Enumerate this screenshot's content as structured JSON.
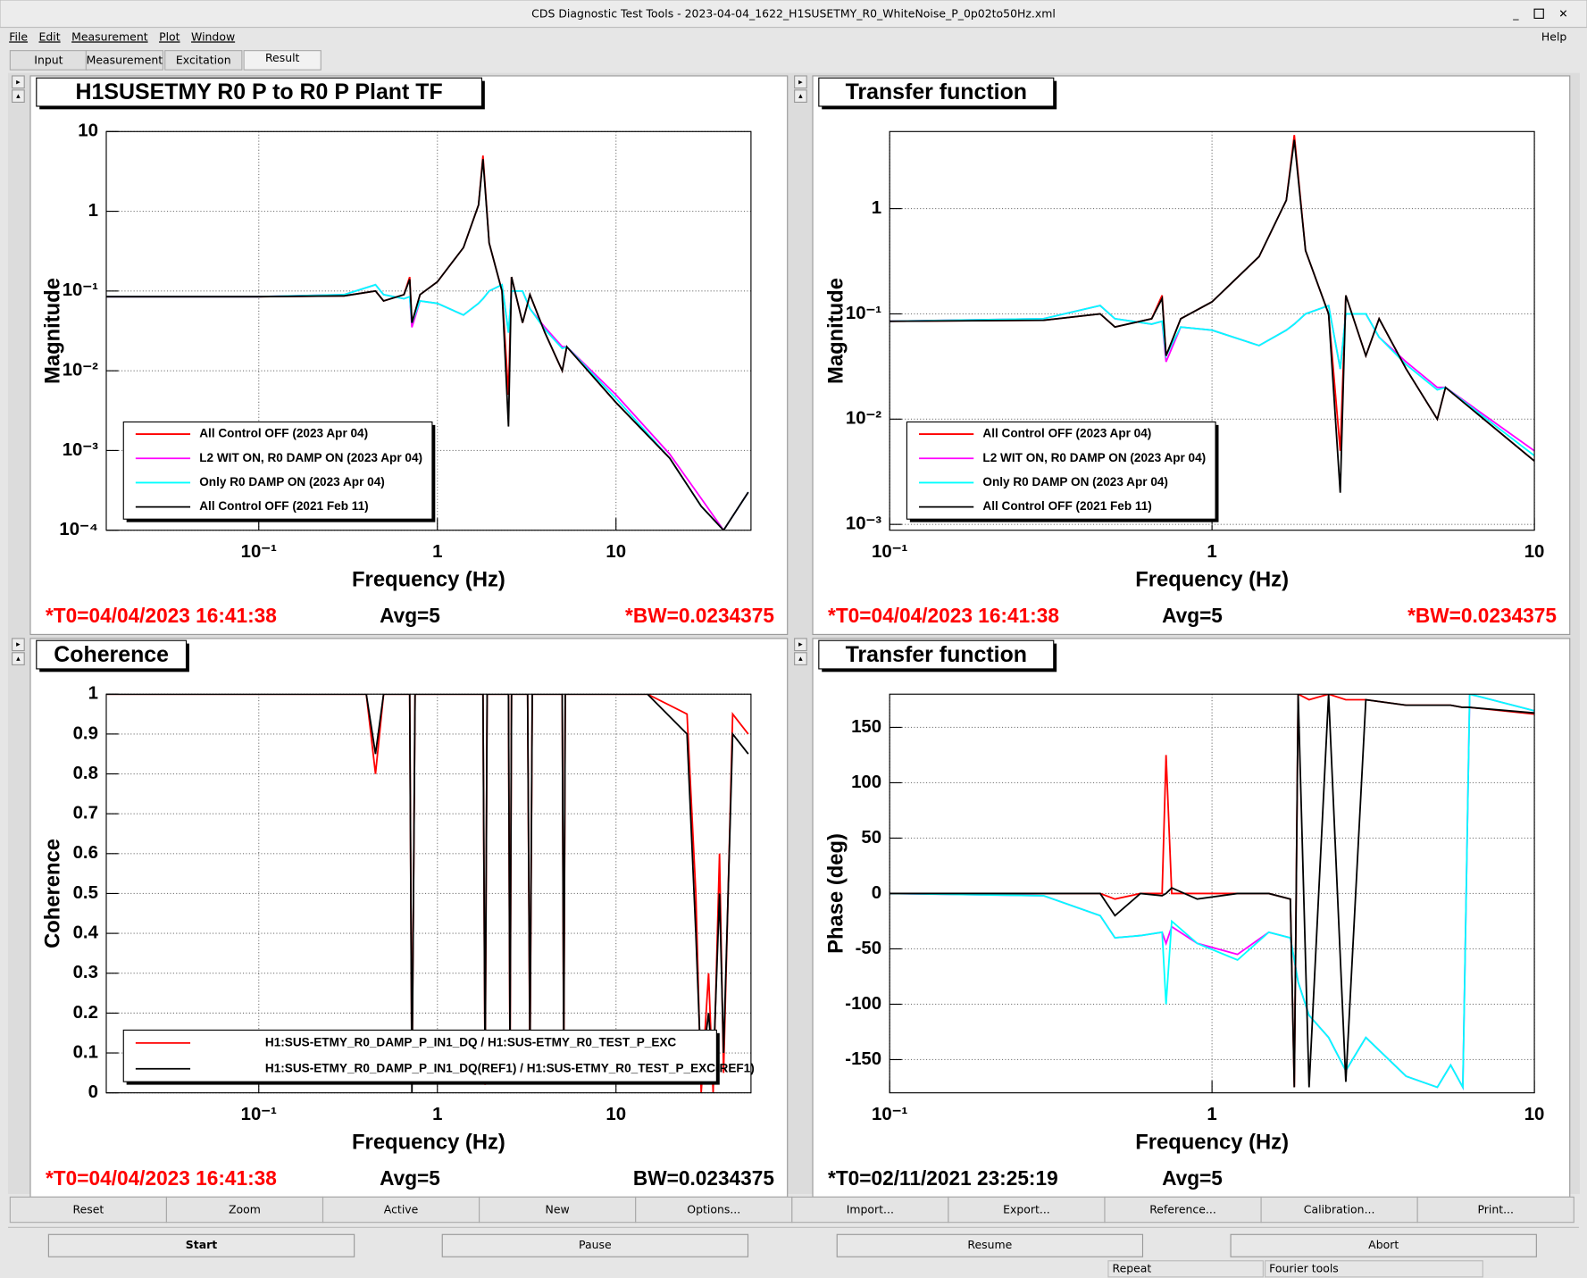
{
  "window": {
    "title": "CDS Diagnostic Test Tools - 2023-04-04_1622_H1SUSETMY_R0_WhiteNoise_P_0p02to50Hz.xml",
    "menus": [
      "File",
      "Edit",
      "Measurement",
      "Plot",
      "Window"
    ],
    "help": "Help"
  },
  "tabs": [
    "Input",
    "Measurement",
    "Excitation",
    "Result"
  ],
  "chart_data": [
    {
      "type": "line",
      "title": "H1SUSETMY R0 P to R0 P Plant TF",
      "xlabel": "Frequency (Hz)",
      "ylabel": "Magnitude",
      "xlog": true,
      "ylog": true,
      "grid": true,
      "xlim": [
        0.014,
        57
      ],
      "ylim": [
        0.0001,
        10
      ],
      "xticks": [
        {
          "value": 0.1,
          "label": "10⁻¹"
        },
        1,
        10
      ],
      "yticks": [
        10,
        1,
        {
          "value": 0.1,
          "label": "10⁻¹"
        },
        {
          "value": 0.01,
          "label": "10⁻²"
        },
        {
          "value": 0.001,
          "label": "10⁻³"
        },
        {
          "value": 0.0001,
          "label": "10⁻⁴"
        }
      ],
      "x": [
        0.014,
        0.1,
        0.3,
        0.45,
        0.5,
        0.65,
        0.7,
        0.72,
        0.8,
        1.0,
        1.4,
        1.7,
        1.8,
        1.95,
        2.3,
        2.5,
        2.6,
        3.0,
        3.3,
        4.0,
        5.0,
        5.3,
        10,
        20,
        30,
        40,
        55
      ],
      "series": [
        {
          "name": "All Control OFF (2023 Apr 04)",
          "color": "#ff0000",
          "values": [
            0.085,
            0.085,
            0.087,
            0.1,
            0.075,
            0.09,
            0.15,
            0.04,
            0.09,
            0.13,
            0.35,
            1.2,
            5,
            0.4,
            0.1,
            0.005,
            0.15,
            0.04,
            0.09,
            0.03,
            0.01,
            0.02,
            0.004,
            0.0008,
            0.0002,
            0.0001,
            0.0003
          ]
        },
        {
          "name": "L2 WIT ON, R0 DAMP ON (2023 Apr 04)",
          "color": "#ff00ff",
          "values": [
            0.085,
            0.085,
            0.09,
            0.12,
            0.09,
            0.08,
            0.085,
            0.035,
            0.075,
            0.07,
            0.05,
            0.07,
            0.08,
            0.1,
            0.12,
            0.03,
            0.1,
            0.1,
            0.06,
            0.035,
            0.02,
            0.02,
            0.005,
            0.0009,
            0.00025,
            0.0001,
            0.0003
          ]
        },
        {
          "name": "Only R0 DAMP ON (2023 Apr 04)",
          "color": "#00ffff",
          "values": [
            0.085,
            0.085,
            0.09,
            0.12,
            0.09,
            0.08,
            0.085,
            0.04,
            0.075,
            0.07,
            0.05,
            0.07,
            0.08,
            0.1,
            0.12,
            0.03,
            0.1,
            0.1,
            0.06,
            0.033,
            0.019,
            0.02,
            0.0045,
            0.0008,
            0.0002,
            0.0001,
            0.0003
          ]
        },
        {
          "name": "All Control OFF (2021 Feb 11)",
          "color": "#000000",
          "values": [
            0.085,
            0.085,
            0.087,
            0.1,
            0.075,
            0.09,
            0.14,
            0.04,
            0.09,
            0.13,
            0.35,
            1.2,
            4.5,
            0.4,
            0.1,
            0.002,
            0.15,
            0.04,
            0.09,
            0.03,
            0.01,
            0.02,
            0.004,
            0.0008,
            0.0002,
            0.0001,
            0.0003
          ]
        }
      ],
      "footer": [
        {
          "text": "*T0=04/04/2023 16:41:38",
          "color": "#ff0000"
        },
        {
          "text": "Avg=5",
          "color": "#000000"
        },
        {
          "text": "*BW=0.0234375",
          "color": "#ff0000"
        }
      ]
    },
    {
      "type": "line",
      "title": "Transfer function",
      "xlabel": "Frequency (Hz)",
      "ylabel": "Magnitude",
      "xlog": true,
      "ylog": true,
      "grid": true,
      "xlim": [
        0.1,
        10
      ],
      "ylim": [
        0.00088,
        5.4
      ],
      "xticks": [
        {
          "value": 0.1,
          "label": "10⁻¹"
        },
        1,
        10
      ],
      "yticks": [
        1,
        {
          "value": 0.1,
          "label": "10⁻¹"
        },
        {
          "value": 0.01,
          "label": "10⁻²"
        },
        {
          "value": 0.001,
          "label": "10⁻³"
        }
      ],
      "x": [
        0.1,
        0.3,
        0.45,
        0.5,
        0.65,
        0.7,
        0.72,
        0.8,
        1.0,
        1.4,
        1.7,
        1.8,
        1.95,
        2.3,
        2.5,
        2.6,
        3.0,
        3.3,
        4.0,
        5.0,
        5.3,
        10
      ],
      "series": [
        {
          "name": "All Control OFF (2023 Apr 04)",
          "color": "#ff0000",
          "values": [
            0.085,
            0.087,
            0.1,
            0.075,
            0.09,
            0.15,
            0.04,
            0.09,
            0.13,
            0.35,
            1.2,
            5,
            0.4,
            0.1,
            0.005,
            0.15,
            0.04,
            0.09,
            0.03,
            0.01,
            0.02,
            0.004
          ]
        },
        {
          "name": "L2 WIT ON, R0 DAMP ON (2023 Apr 04)",
          "color": "#ff00ff",
          "values": [
            0.085,
            0.09,
            0.12,
            0.09,
            0.08,
            0.085,
            0.035,
            0.075,
            0.07,
            0.05,
            0.07,
            0.08,
            0.1,
            0.12,
            0.03,
            0.1,
            0.1,
            0.06,
            0.035,
            0.02,
            0.02,
            0.005
          ]
        },
        {
          "name": "Only R0 DAMP ON (2023 Apr 04)",
          "color": "#00ffff",
          "values": [
            0.085,
            0.09,
            0.12,
            0.09,
            0.08,
            0.085,
            0.04,
            0.075,
            0.07,
            0.05,
            0.07,
            0.08,
            0.1,
            0.12,
            0.03,
            0.1,
            0.1,
            0.06,
            0.033,
            0.019,
            0.02,
            0.0045
          ]
        },
        {
          "name": "All Control OFF (2021 Feb 11)",
          "color": "#000000",
          "values": [
            0.085,
            0.087,
            0.1,
            0.075,
            0.09,
            0.14,
            0.04,
            0.09,
            0.13,
            0.35,
            1.2,
            4.5,
            0.4,
            0.1,
            0.002,
            0.15,
            0.04,
            0.09,
            0.03,
            0.01,
            0.02,
            0.004
          ]
        }
      ],
      "footer": [
        {
          "text": "*T0=04/04/2023 16:41:38",
          "color": "#ff0000"
        },
        {
          "text": "Avg=5",
          "color": "#000000"
        },
        {
          "text": "*BW=0.0234375",
          "color": "#ff0000"
        }
      ]
    },
    {
      "type": "line",
      "title": "Coherence",
      "xlabel": "Frequency (Hz)",
      "ylabel": "Coherence",
      "xlog": true,
      "ylog": false,
      "grid": true,
      "xlim": [
        0.014,
        57
      ],
      "ylim": [
        0,
        1
      ],
      "xticks": [
        {
          "value": 0.1,
          "label": "10⁻¹"
        },
        1,
        10
      ],
      "yticks": [
        0,
        0.1,
        0.2,
        0.3,
        0.4,
        0.5,
        0.6,
        0.7,
        0.8,
        0.9,
        1
      ],
      "x": [
        0.014,
        0.4,
        0.45,
        0.5,
        0.7,
        0.72,
        0.75,
        1.8,
        1.85,
        1.9,
        2.5,
        2.55,
        2.6,
        3.2,
        3.3,
        3.4,
        5.0,
        5.1,
        5.2,
        15,
        25,
        28,
        30,
        33,
        35,
        38,
        40,
        45,
        55
      ],
      "series": [
        {
          "name": "H1:SUS-ETMY_R0_DAMP_P_IN1_DQ / H1:SUS-ETMY_R0_TEST_P_EXC",
          "color": "#ff0000",
          "values": [
            1,
            1,
            0.8,
            1,
            1,
            0.02,
            1,
            1,
            0.02,
            1,
            1,
            0.05,
            1,
            1,
            0.05,
            1,
            1,
            0.05,
            1,
            1,
            0.95,
            0.5,
            0,
            0.3,
            0,
            0.6,
            0.05,
            0.95,
            0.9
          ]
        },
        {
          "name": "H1:SUS-ETMY_R0_DAMP_P_IN1_DQ(REF1) / H1:SUS-ETMY_R0_TEST_P_EXC(REF1)",
          "color": "#000000",
          "values": [
            1,
            1,
            0.85,
            1,
            1,
            0,
            1,
            1,
            0.05,
            1,
            1,
            0.1,
            1,
            1,
            0.1,
            1,
            1,
            0.1,
            1,
            1,
            0.9,
            0.4,
            0.05,
            0.2,
            0.05,
            0.5,
            0.1,
            0.9,
            0.85
          ]
        }
      ],
      "footer": [
        {
          "text": "*T0=04/04/2023 16:41:38",
          "color": "#ff0000"
        },
        {
          "text": "Avg=5",
          "color": "#000000"
        },
        {
          "text": "BW=0.0234375",
          "color": "#000000"
        }
      ]
    },
    {
      "type": "line",
      "title": "Transfer function",
      "xlabel": "Frequency (Hz)",
      "ylabel": "Phase (deg)",
      "xlog": true,
      "ylog": false,
      "grid": true,
      "legend": false,
      "xlim": [
        0.1,
        10
      ],
      "ylim": [
        -180,
        180
      ],
      "xticks": [
        {
          "value": 0.1,
          "label": "10⁻¹"
        },
        1,
        10
      ],
      "yticks": [
        -150,
        -100,
        -50,
        0,
        50,
        100,
        150
      ],
      "x": [
        0.1,
        0.3,
        0.45,
        0.5,
        0.6,
        0.7,
        0.72,
        0.75,
        0.9,
        1.2,
        1.5,
        1.75,
        1.8,
        1.85,
        2.0,
        2.3,
        2.6,
        3.0,
        4.0,
        5.0,
        5.5,
        6.0,
        6.3,
        10
      ],
      "series": [
        {
          "name": "All Control OFF (2023 Apr 04)",
          "color": "#ff0000",
          "values": [
            0,
            0,
            0,
            -5,
            0,
            0,
            125,
            0,
            0,
            0,
            0,
            -5,
            -175,
            180,
            175,
            180,
            175,
            175,
            170,
            170,
            170,
            168,
            168,
            162
          ]
        },
        {
          "name": "L2 WIT ON, R0 DAMP ON (2023 Apr 04)",
          "color": "#ff00ff",
          "values": [
            0,
            -2,
            -20,
            -40,
            -38,
            -35,
            -45,
            -30,
            -45,
            -55,
            -35,
            -40,
            -60,
            -80,
            -110,
            -130,
            -160,
            -130,
            -165,
            -175,
            -155,
            -175,
            180,
            165
          ]
        },
        {
          "name": "Only R0 DAMP ON (2023 Apr 04)",
          "color": "#00ffff",
          "values": [
            0,
            -2,
            -20,
            -40,
            -38,
            -35,
            -100,
            -25,
            -45,
            -60,
            -35,
            -40,
            -60,
            -80,
            -110,
            -130,
            -160,
            -130,
            -165,
            -175,
            -155,
            -175,
            180,
            165
          ]
        },
        {
          "name": "All Control OFF (2021 Feb 11)",
          "color": "#000000",
          "values": [
            0,
            0,
            0,
            -20,
            0,
            -2,
            0,
            5,
            -5,
            0,
            0,
            -5,
            -175,
            180,
            -175,
            180,
            -170,
            175,
            170,
            170,
            170,
            168,
            168,
            163
          ]
        }
      ],
      "footer": [
        {
          "text": "*T0=02/11/2021 23:25:19",
          "color": "#000000"
        },
        {
          "text": "Avg=5",
          "color": "#000000"
        }
      ]
    }
  ],
  "buttons": [
    "Reset",
    "Zoom",
    "Active",
    "New",
    "Options...",
    "Import...",
    "Export...",
    "Reference...",
    "Calibration...",
    "Print..."
  ],
  "controls": [
    "Start",
    "Pause",
    "Resume",
    "Abort"
  ],
  "status": [
    "Repeat",
    "Fourier tools"
  ]
}
